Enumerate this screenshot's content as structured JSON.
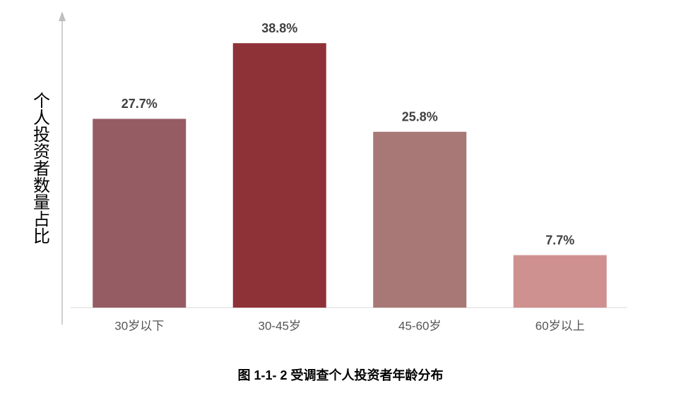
{
  "chart_data": {
    "type": "bar",
    "title": "图 1-1- 2 受调查个人投资者年龄分布",
    "y_label": "个人投资者数量占比",
    "categories": [
      "30岁以下",
      "30-45岁",
      "45-60岁",
      "60岁以上"
    ],
    "values": [
      27.7,
      38.8,
      25.8,
      7.7
    ],
    "value_labels": [
      "27.7%",
      "38.8%",
      "25.8%",
      "7.7%"
    ],
    "colors": [
      "#955c63",
      "#8f3238",
      "#a87876",
      "#cf9190"
    ],
    "ylim": [
      0,
      43
    ]
  }
}
